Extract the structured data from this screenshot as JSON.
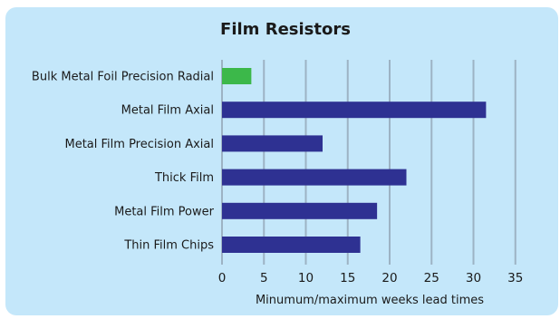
{
  "chart_data": {
    "type": "bar",
    "orientation": "horizontal",
    "title": "Film Resistors",
    "xlabel": "Minumum/maximum weeks lead times",
    "ylabel": "",
    "categories": [
      "Bulk Metal Foil Precision Radial",
      "Metal Film Axial",
      "Metal Film Precision Axial",
      "Thick Film",
      "Metal Film Power",
      "Thin Film Chips"
    ],
    "values": [
      3.5,
      31.5,
      12,
      22,
      18.5,
      16.5
    ],
    "bar_colors": [
      "#3cb84a",
      "#2e3192",
      "#2e3192",
      "#2e3192",
      "#2e3192",
      "#2e3192"
    ],
    "xlim": [
      0,
      35
    ],
    "xticks": [
      0,
      5,
      10,
      15,
      20,
      25,
      30,
      35
    ],
    "grid": true,
    "grid_color": "#9db3c4",
    "background_color": "#c4e7fa"
  }
}
